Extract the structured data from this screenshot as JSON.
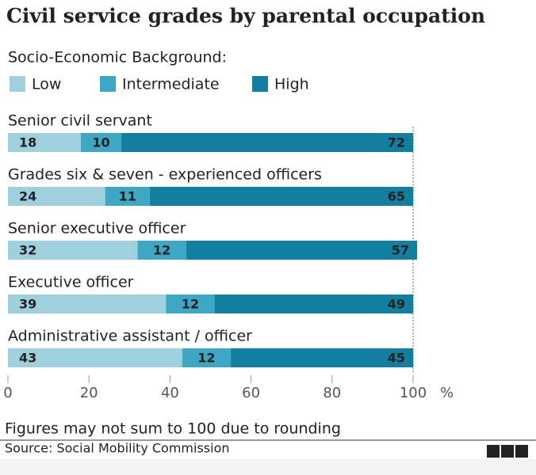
{
  "chart_data": {
    "type": "stacked-bar-horizontal",
    "title": "Civil service grades by parental occupation",
    "legend_title": "Socio-Economic Background:",
    "categories": [
      "Senior civil servant",
      "Grades six & seven - experienced officers",
      "Senior executive officer",
      "Executive officer",
      "Administrative assistant / officer"
    ],
    "series": [
      {
        "name": "Low",
        "color": "#9fd0de",
        "values": [
          18,
          24,
          32,
          39,
          43
        ]
      },
      {
        "name": "Intermediate",
        "color": "#3ea7c3",
        "values": [
          10,
          11,
          12,
          12,
          12
        ]
      },
      {
        "name": "High",
        "color": "#137fa0",
        "values": [
          72,
          65,
          57,
          49,
          45
        ]
      }
    ],
    "xlim": [
      0,
      100
    ],
    "xticks": [
      0,
      20,
      40,
      60,
      80,
      100
    ],
    "xlabel": "%",
    "note": "Figures may not sum to 100 due to rounding",
    "source": "Source: Social Mobility Commission",
    "logo": [
      "B",
      "B",
      "C"
    ]
  }
}
